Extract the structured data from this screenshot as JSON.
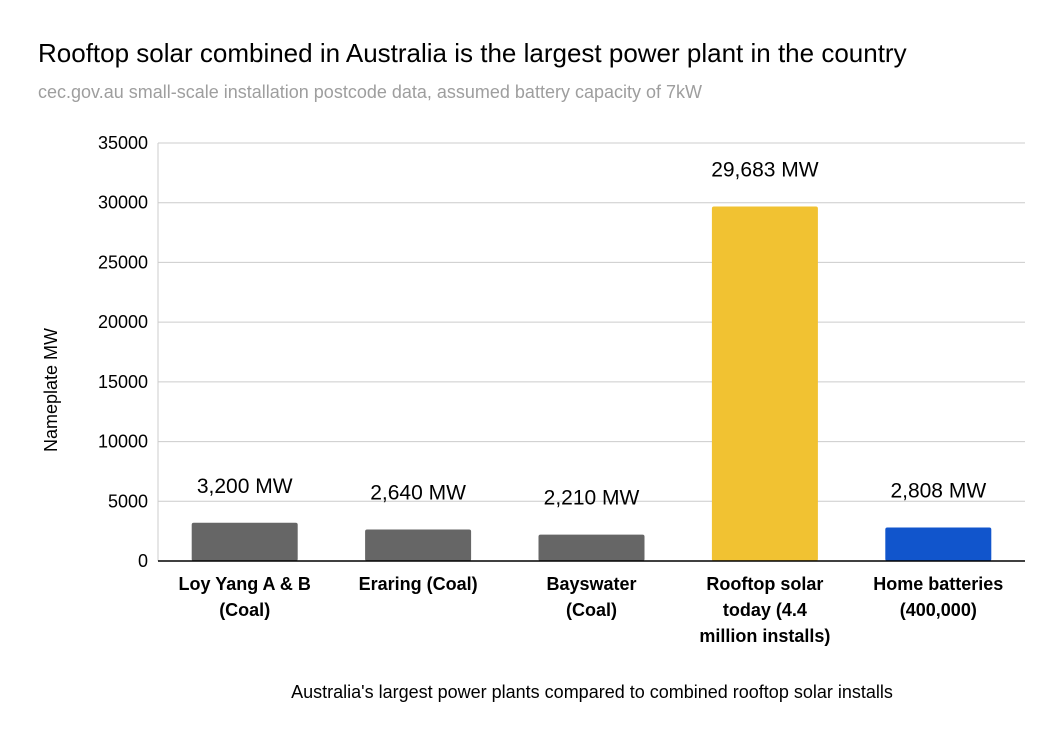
{
  "chart_data": {
    "type": "bar",
    "title": "Rooftop solar combined in Australia is the largest power plant in the country",
    "subtitle": "cec.gov.au small-scale installation postcode data, assumed battery capacity of 7kW",
    "xlabel": "Australia's largest power plants compared to combined rooftop solar installs",
    "ylabel": "Nameplate MW",
    "ylim": [
      0,
      35000
    ],
    "yticks": [
      "0",
      "5000",
      "10000",
      "15000",
      "20000",
      "25000",
      "30000",
      "35000"
    ],
    "grid": true,
    "legend": "none",
    "categories": [
      [
        "Loy Yang A & B",
        "(Coal)"
      ],
      [
        "Eraring (Coal)"
      ],
      [
        "Bayswater",
        "(Coal)"
      ],
      [
        "Rooftop solar",
        "today (4.4",
        "million installs)"
      ],
      [
        "Home batteries",
        "(400,000)"
      ]
    ],
    "values": [
      3200,
      2640,
      2210,
      29683,
      2808
    ],
    "data_labels": [
      "3,200 MW",
      "2,640 MW",
      "2,210 MW",
      "29,683 MW",
      "2,808 MW"
    ],
    "colors": [
      "#666666",
      "#666666",
      "#666666",
      "#f1c232",
      "#1155cc"
    ]
  }
}
